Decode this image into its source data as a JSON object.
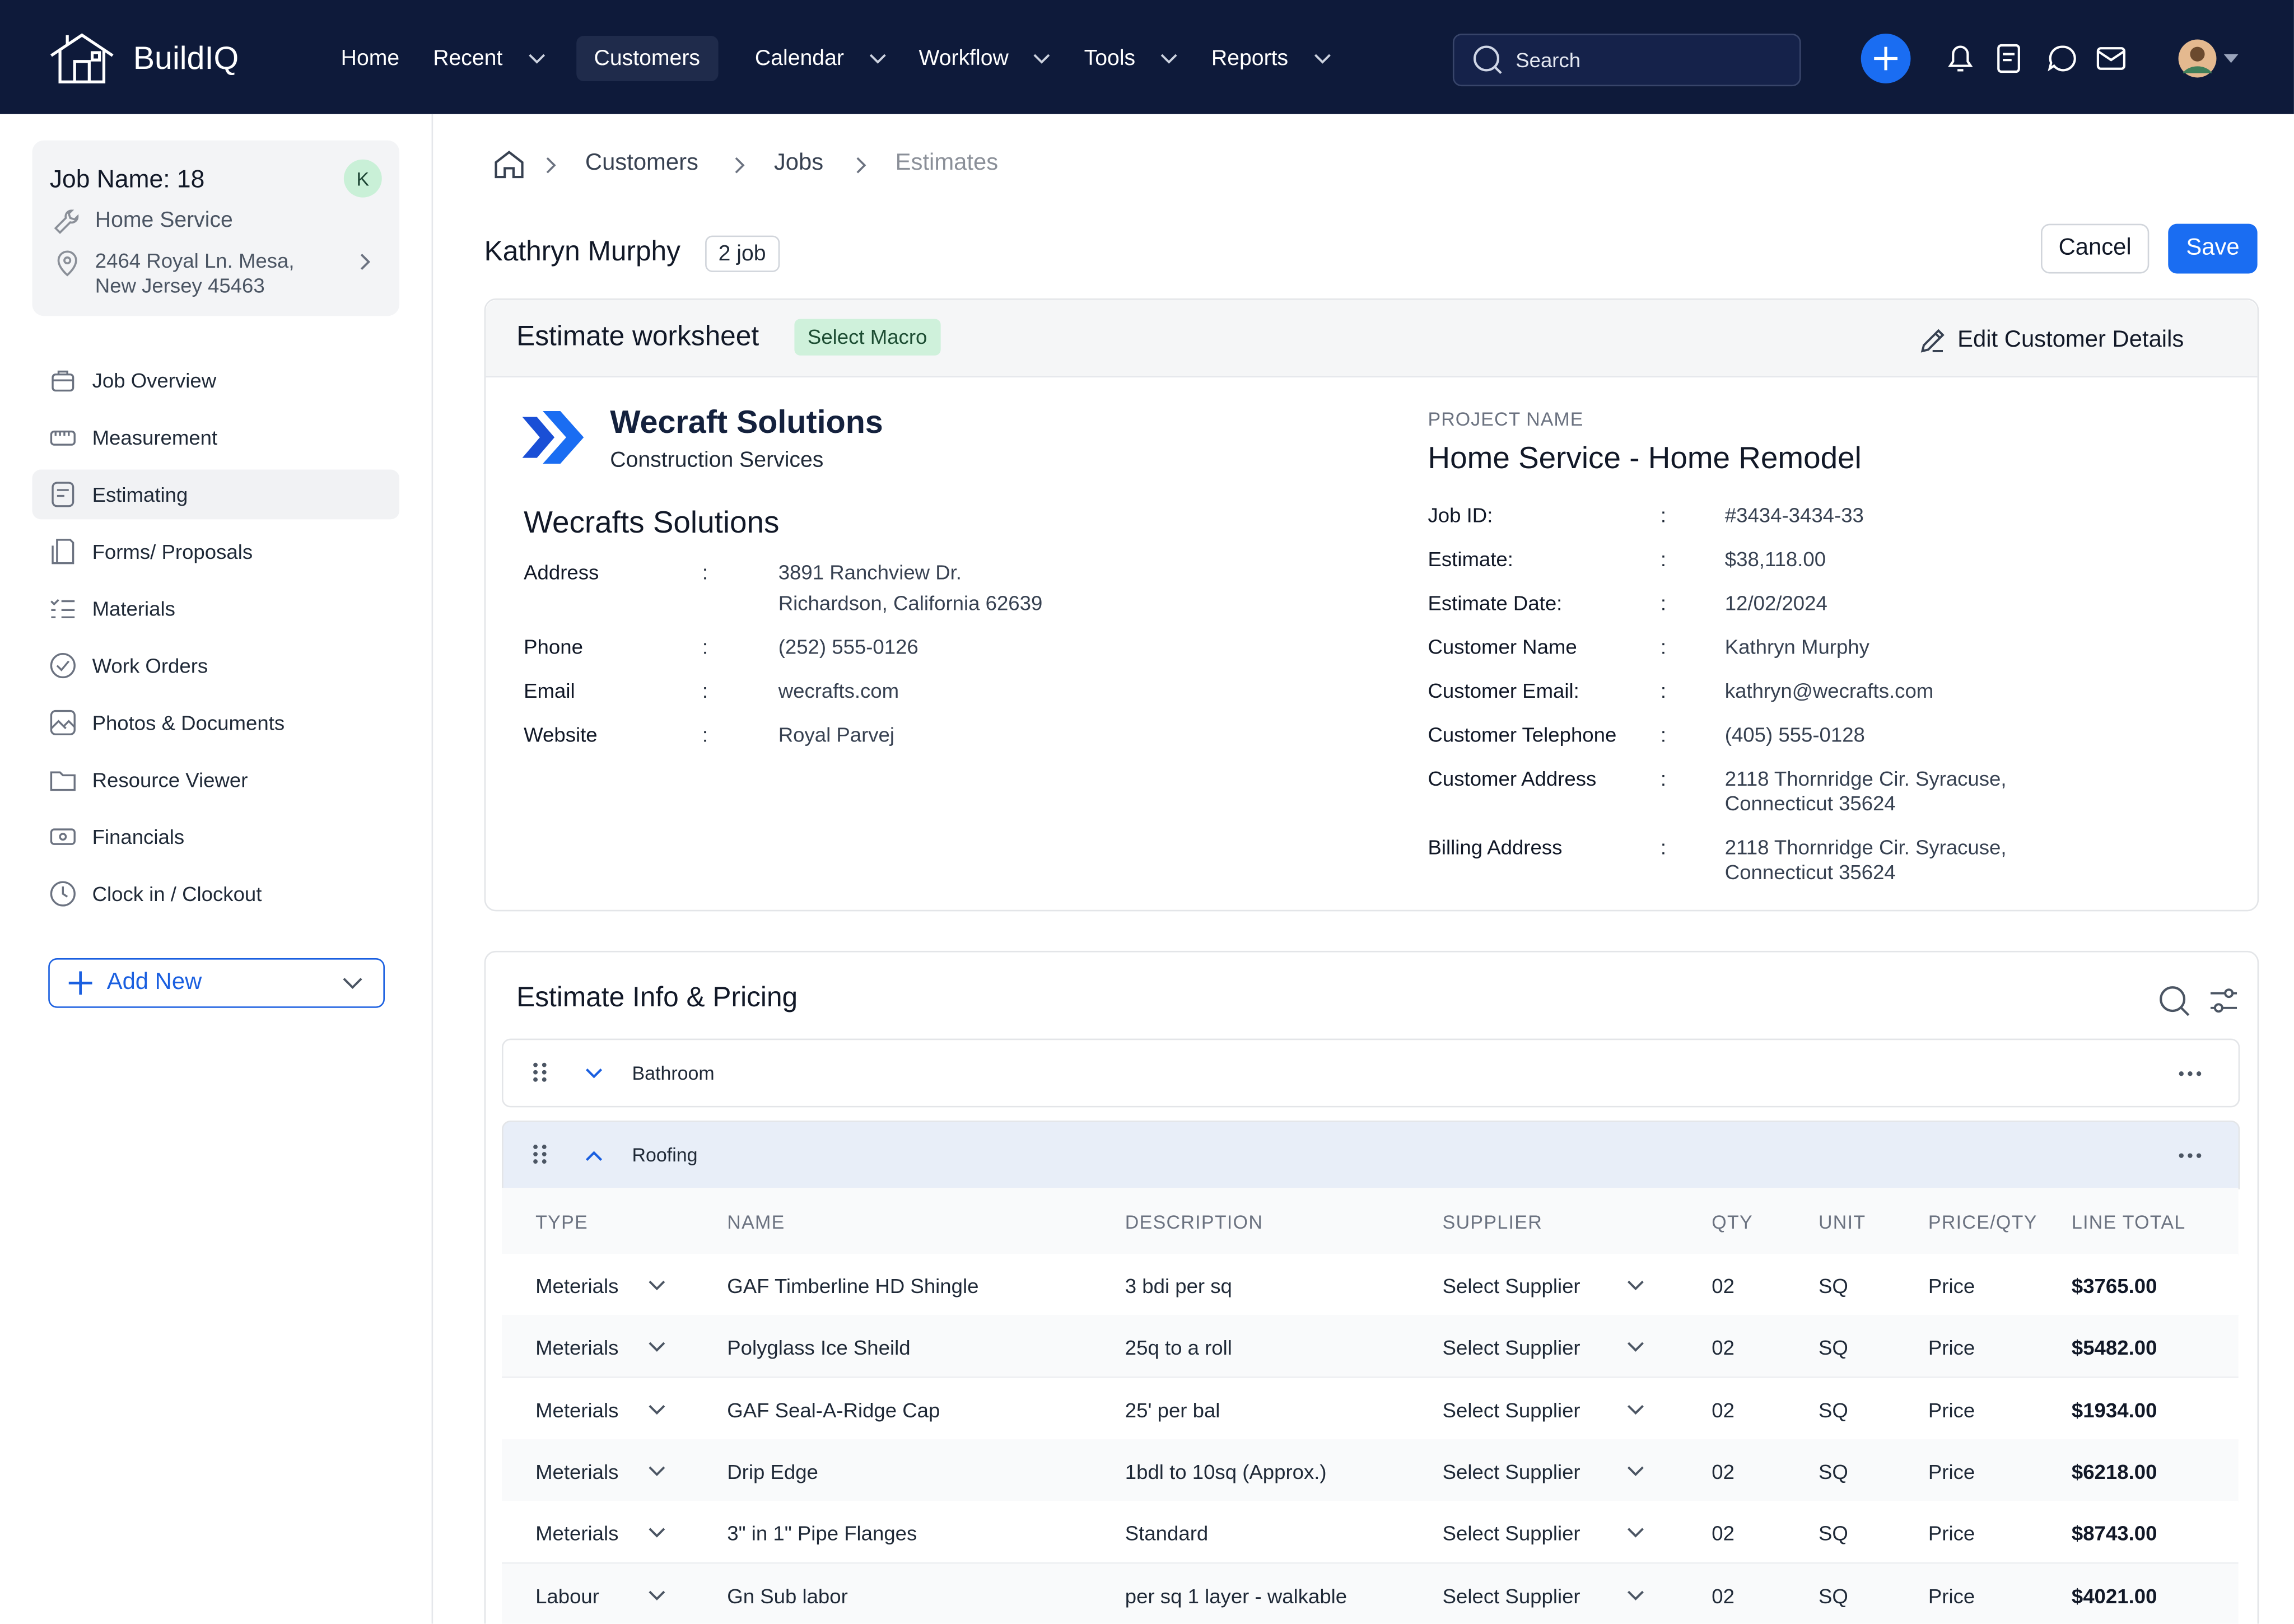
{
  "brand": "BuildIQ",
  "nav": [
    "Home",
    "Recent",
    "Customers",
    "Calendar",
    "Workflow",
    "Tools",
    "Reports"
  ],
  "search_placeholder": "Search",
  "sidebar": {
    "job_name": "Job Name: 18",
    "avatar": "K",
    "service": "Home Service",
    "address": "2464 Royal Ln. Mesa, New Jersey 45463",
    "menu": [
      "Job Overview",
      "Measurement",
      "Estimating",
      "Forms/ Proposals",
      "Materials",
      "Work Orders",
      "Photos & Documents",
      "Resource Viewer",
      "Financials",
      "Clock in / Clockout"
    ],
    "add_new": "Add New"
  },
  "breadcrumb": [
    "Customers",
    "Jobs",
    "Estimates"
  ],
  "customer": {
    "name": "Kathryn Murphy",
    "jobs": "2 job"
  },
  "buttons": {
    "cancel": "Cancel",
    "save": "Save"
  },
  "separator": ":",
  "worksheet": {
    "title": "Estimate worksheet",
    "macro": "Select Macro",
    "edit": "Edit Customer Details",
    "company": {
      "name": "Wecraft Solutions",
      "tagline": "Construction Services"
    },
    "company_name": "Wecrafts Solutions",
    "company_fields": [
      {
        "label": "Address",
        "value": "3891 Ranchview Dr. Richardson, California 62639"
      },
      {
        "label": "Phone",
        "value": "(252) 555-0126"
      },
      {
        "label": "Email",
        "value": "wecrafts.com"
      },
      {
        "label": "Website",
        "value": "Royal Parvej"
      }
    ],
    "project_label": "PROJECT NAME",
    "project_name": "Home Service - Home Remodel",
    "project_fields": [
      {
        "label": "Job ID:",
        "value": "#3434-3434-33"
      },
      {
        "label": "Estimate:",
        "value": "$38,118.00"
      },
      {
        "label": "Estimate Date:",
        "value": "12/02/2024"
      },
      {
        "label": "Customer Name",
        "value": "Kathryn Murphy"
      },
      {
        "label": "Customer Email:",
        "value": "kathryn@wecrafts.com"
      },
      {
        "label": "Customer Telephone",
        "value": "(405) 555-0128"
      },
      {
        "label": "Customer Address",
        "value": "2118 Thornridge Cir. Syracuse, Connecticut 35624"
      },
      {
        "label": "Billing Address",
        "value": "2118 Thornridge Cir. Syracuse, Connecticut 35624"
      }
    ]
  },
  "pricing": {
    "title": "Estimate Info & Pricing",
    "groups": [
      "Bathroom",
      "Roofing"
    ],
    "columns": [
      "TYPE",
      "NAME",
      "DESCRIPTION",
      "SUPPLIER",
      "QTY",
      "UNIT",
      "PRICE/QTY",
      "LINE TOTAL"
    ],
    "rows": [
      [
        "Meterials",
        "GAF Timberline HD Shingle",
        "3 bdi per sq",
        "Select Supplier",
        "02",
        "SQ",
        "Price",
        "$3765.00"
      ],
      [
        "Meterials",
        "Polyglass Ice Sheild",
        "25q to a roll",
        "Select Supplier",
        "02",
        "SQ",
        "Price",
        "$5482.00"
      ],
      [
        "Meterials",
        "GAF Seal-A-Ridge Cap",
        "25' per bal",
        "Select Supplier",
        "02",
        "SQ",
        "Price",
        "$1934.00"
      ],
      [
        "Meterials",
        "Drip Edge",
        "1bdl to 10sq (Approx.)",
        "Select Supplier",
        "02",
        "SQ",
        "Price",
        "$6218.00"
      ],
      [
        "Meterials",
        "3\" in 1\" Pipe Flanges",
        "Standard",
        "Select Supplier",
        "02",
        "SQ",
        "Price",
        "$8743.00"
      ],
      [
        "Labour",
        "Gn Sub labor",
        "per sq 1 layer - walkable",
        "Select Supplier",
        "02",
        "SQ",
        "Price",
        "$4021.00"
      ]
    ]
  }
}
